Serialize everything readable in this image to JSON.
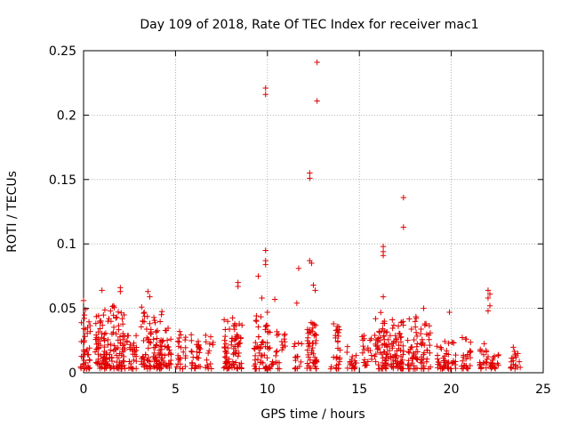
{
  "chart_data": {
    "type": "scatter",
    "title": "Day 109 of 2018, Rate Of TEC Index for receiver mac1",
    "xlabel": "GPS time / hours",
    "ylabel": "ROTI / TECUs",
    "xlim": [
      0,
      25
    ],
    "ylim": [
      0,
      0.25
    ],
    "xticks": [
      0,
      5,
      10,
      15,
      20,
      25
    ],
    "yticks": [
      0,
      0.05,
      0.1,
      0.15,
      0.2,
      0.25
    ],
    "xtick_labels": [
      "0",
      "5",
      "10",
      "15",
      "20",
      "25"
    ],
    "ytick_labels": [
      "0",
      "0.05",
      "0.1",
      "0.15",
      "0.2",
      "0.25"
    ],
    "grid": true,
    "marker": "+",
    "color": "#e00000",
    "outliers": [
      [
        12.7,
        0.241
      ],
      [
        9.9,
        0.221
      ],
      [
        9.9,
        0.216
      ],
      [
        12.7,
        0.211
      ],
      [
        12.3,
        0.155
      ],
      [
        12.3,
        0.151
      ],
      [
        17.4,
        0.136
      ],
      [
        17.4,
        0.113
      ],
      [
        16.3,
        0.098
      ],
      [
        16.3,
        0.094
      ],
      [
        16.3,
        0.091
      ],
      [
        9.9,
        0.095
      ],
      [
        9.9,
        0.087
      ],
      [
        9.9,
        0.084
      ],
      [
        9.5,
        0.075
      ],
      [
        12.3,
        0.087
      ],
      [
        12.4,
        0.085
      ],
      [
        11.7,
        0.081
      ],
      [
        12.5,
        0.068
      ],
      [
        12.6,
        0.064
      ],
      [
        8.4,
        0.07
      ],
      [
        8.4,
        0.067
      ],
      [
        9.7,
        0.058
      ],
      [
        10.4,
        0.057
      ],
      [
        16.3,
        0.059
      ],
      [
        22.0,
        0.064
      ],
      [
        22.1,
        0.061
      ],
      [
        22.0,
        0.058
      ],
      [
        22.1,
        0.052
      ],
      [
        22.0,
        0.048
      ],
      [
        2.0,
        0.066
      ],
      [
        2.0,
        0.063
      ],
      [
        1.0,
        0.064
      ],
      [
        0.0,
        0.056
      ],
      [
        0.1,
        0.049
      ],
      [
        3.5,
        0.063
      ],
      [
        3.6,
        0.059
      ],
      [
        10.0,
        0.047
      ],
      [
        11.6,
        0.054
      ],
      [
        18.5,
        0.05
      ],
      [
        19.9,
        0.047
      ]
    ],
    "clusters": [
      {
        "center": 0.1,
        "ymax": 0.047,
        "count": 40
      },
      {
        "center": 0.9,
        "ymax": 0.045,
        "count": 50
      },
      {
        "center": 1.4,
        "ymax": 0.052,
        "count": 45
      },
      {
        "center": 2.0,
        "ymax": 0.048,
        "count": 50
      },
      {
        "center": 2.6,
        "ymax": 0.03,
        "count": 30
      },
      {
        "center": 3.4,
        "ymax": 0.053,
        "count": 45
      },
      {
        "center": 4.0,
        "ymax": 0.05,
        "count": 50
      },
      {
        "center": 4.5,
        "ymax": 0.035,
        "count": 30
      },
      {
        "center": 5.3,
        "ymax": 0.034,
        "count": 25
      },
      {
        "center": 6.1,
        "ymax": 0.03,
        "count": 30
      },
      {
        "center": 6.9,
        "ymax": 0.031,
        "count": 15
      },
      {
        "center": 7.9,
        "ymax": 0.047,
        "count": 40
      },
      {
        "center": 8.4,
        "ymax": 0.039,
        "count": 40
      },
      {
        "center": 9.5,
        "ymax": 0.045,
        "count": 35
      },
      {
        "center": 10.1,
        "ymax": 0.038,
        "count": 30
      },
      {
        "center": 10.7,
        "ymax": 0.032,
        "count": 20
      },
      {
        "center": 11.7,
        "ymax": 0.03,
        "count": 15
      },
      {
        "center": 12.4,
        "ymax": 0.04,
        "count": 50
      },
      {
        "center": 13.7,
        "ymax": 0.041,
        "count": 30
      },
      {
        "center": 14.6,
        "ymax": 0.025,
        "count": 20
      },
      {
        "center": 15.4,
        "ymax": 0.03,
        "count": 20
      },
      {
        "center": 16.1,
        "ymax": 0.047,
        "count": 40
      },
      {
        "center": 16.6,
        "ymax": 0.045,
        "count": 45
      },
      {
        "center": 17.2,
        "ymax": 0.04,
        "count": 45
      },
      {
        "center": 17.9,
        "ymax": 0.044,
        "count": 40
      },
      {
        "center": 18.6,
        "ymax": 0.038,
        "count": 35
      },
      {
        "center": 19.5,
        "ymax": 0.025,
        "count": 25
      },
      {
        "center": 20.0,
        "ymax": 0.024,
        "count": 20
      },
      {
        "center": 20.8,
        "ymax": 0.028,
        "count": 25
      },
      {
        "center": 21.8,
        "ymax": 0.026,
        "count": 20
      },
      {
        "center": 22.3,
        "ymax": 0.02,
        "count": 20
      },
      {
        "center": 23.5,
        "ymax": 0.02,
        "count": 20
      }
    ]
  }
}
